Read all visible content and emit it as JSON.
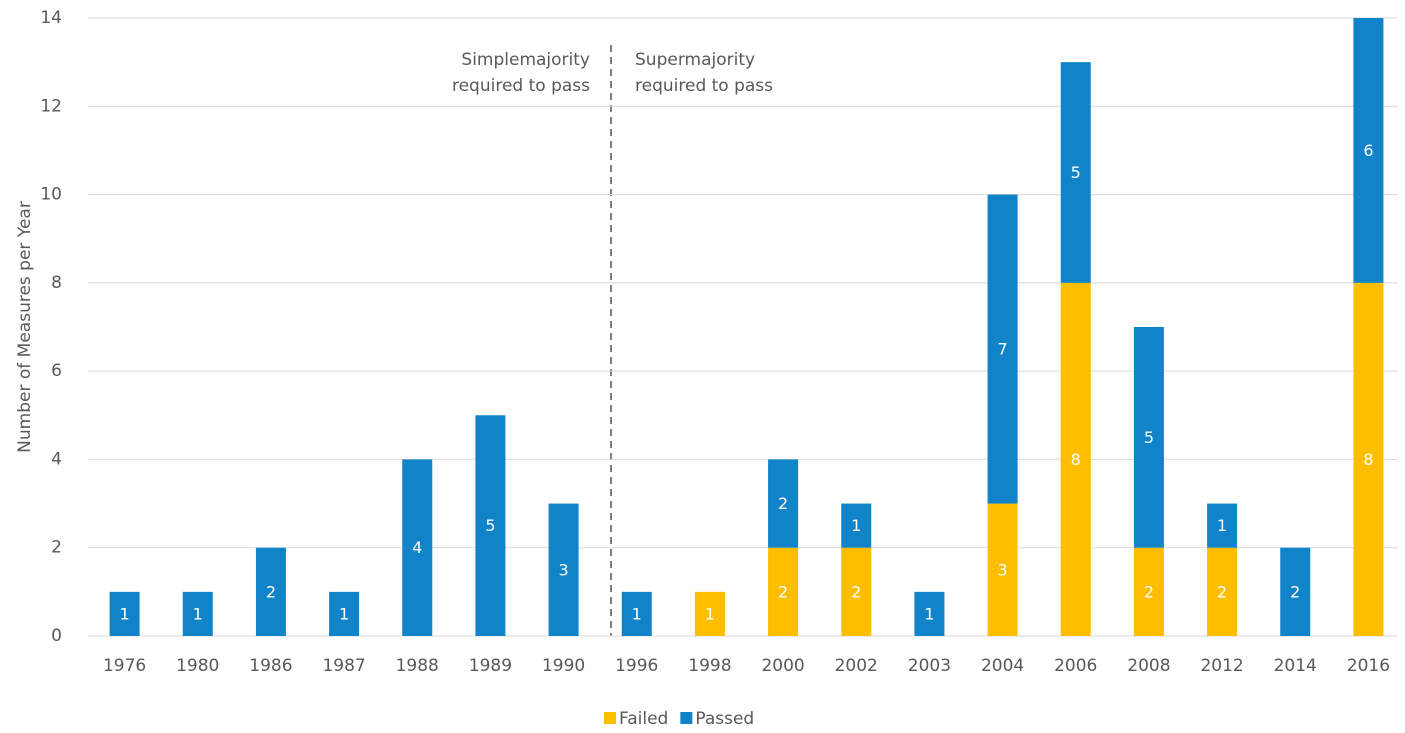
{
  "chart_data": {
    "type": "stacked_bar",
    "y_label": "Number of Measures per Year",
    "categories": [
      "1976",
      "1980",
      "1986",
      "1987",
      "1988",
      "1989",
      "1990",
      "1996",
      "1998",
      "2000",
      "2002",
      "2003",
      "2004",
      "2006",
      "2008",
      "2012",
      "2014",
      "2016"
    ],
    "series": [
      {
        "name": "Failed",
        "color": "#fdbe00",
        "values": [
          null,
          null,
          null,
          null,
          null,
          null,
          null,
          null,
          1,
          2,
          2,
          null,
          3,
          8,
          2,
          2,
          null,
          8
        ]
      },
      {
        "name": "Passed",
        "color": "#1183c8",
        "values": [
          1,
          1,
          2,
          1,
          4,
          5,
          3,
          1,
          null,
          2,
          1,
          1,
          7,
          5,
          5,
          1,
          2,
          6
        ]
      }
    ],
    "ylim": [
      0,
      14
    ],
    "yticks": [
      0,
      2,
      4,
      6,
      8,
      10,
      12,
      14
    ],
    "grid": true,
    "legend": "bottom",
    "annotations": [
      {
        "lines": [
          "Simplemajority",
          "required to pass"
        ]
      },
      {
        "lines": [
          "Supermajority",
          "required to pass"
        ]
      }
    ]
  }
}
